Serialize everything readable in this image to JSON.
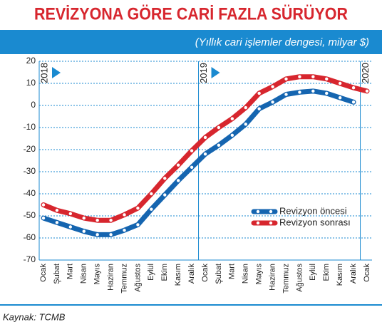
{
  "chart_data": {
    "type": "line",
    "title": "REVİZYONA GÖRE CARİ FAZLA SÜRÜYOR",
    "subtitle": "(Yıllık cari işlemler dengesi, milyar $)",
    "source": "Kaynak: TCMB",
    "year_labels": [
      "2018",
      "2019",
      "2020"
    ],
    "categories": [
      "Ocak",
      "Şubat",
      "Mart",
      "Nisan",
      "Mayıs",
      "Haziran",
      "Temmuz",
      "Ağustos",
      "Eylül",
      "Ekim",
      "Kasım",
      "Aralık",
      "Ocak",
      "Şubat",
      "Mart",
      "Nisan",
      "Mayıs",
      "Haziran",
      "Temmuz",
      "Ağustos",
      "Eylül",
      "Ekim",
      "Kasım",
      "Aralık",
      "Ocak"
    ],
    "series": [
      {
        "name": "Revizyon öncesi",
        "color": "#1565b0",
        "values": [
          -51,
          -53,
          -55,
          -57,
          -58.5,
          -58.5,
          -56.5,
          -54,
          -47,
          -40.5,
          -34,
          -28,
          -22,
          -18,
          -13.5,
          -8.5,
          -1.5,
          1.5,
          5,
          6,
          6.5,
          5.5,
          3.5,
          1.5,
          null
        ]
      },
      {
        "name": "Revizyon sonrası",
        "color": "#d7262e",
        "values": [
          -45,
          -47.5,
          -49,
          -51,
          -52,
          -52,
          -49.5,
          -46.5,
          -40,
          -33,
          -27,
          -20.5,
          -14.5,
          -10,
          -6,
          -1,
          5.5,
          8.5,
          12,
          13,
          13,
          12,
          10,
          8,
          6.5
        ]
      }
    ],
    "ylim": [
      -70,
      20
    ],
    "yticks": [
      -70,
      -60,
      -50,
      -40,
      -30,
      -20,
      -10,
      0,
      10,
      20
    ],
    "grid": true
  }
}
